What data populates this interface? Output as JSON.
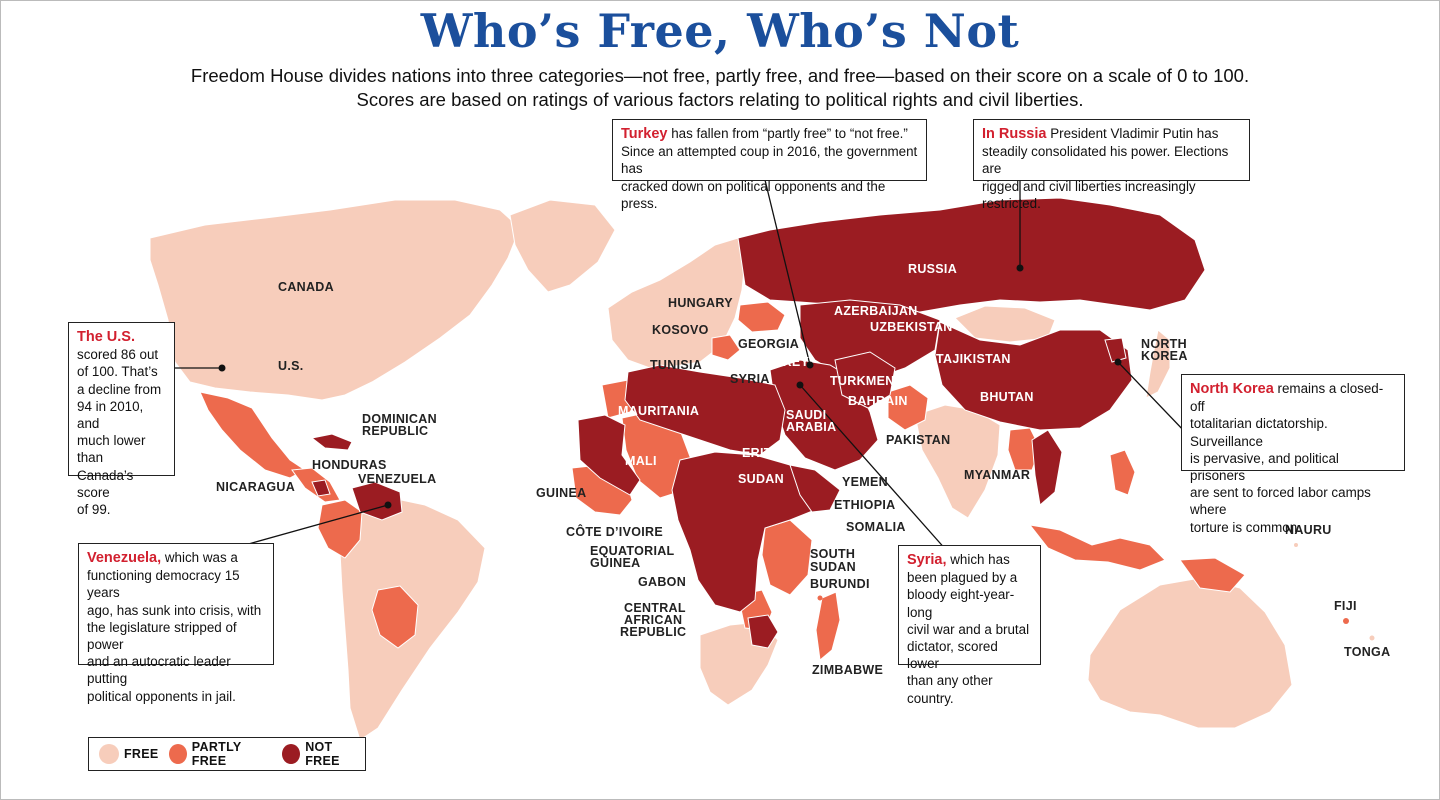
{
  "title": "Who’s Free, Who’s Not",
  "subtitle": [
    "Freedom House divides nations into three categories—not free, partly free, and free—based on their score on a scale of 0 to 100.",
    "Scores are based on ratings of various factors relating to political rights and civil liberties."
  ],
  "colors": {
    "free": "#f7cdbb",
    "partly_free": "#ed6a4d",
    "not_free": "#9b1c22",
    "title": "#1b4f9c",
    "highlight": "#d2202f"
  },
  "legend": [
    {
      "key": "free",
      "label": "FREE"
    },
    {
      "key": "partly_free",
      "label": "PARTLY FREE"
    },
    {
      "key": "not_free",
      "label": "NOT FREE"
    }
  ],
  "labels": {
    "canada": "CANADA",
    "us": "U.S.",
    "dominican": "DOMINICAN",
    "republic": "REPUBLIC",
    "honduras": "HONDURAS",
    "nicaragua": "NICARAGUA",
    "venezuela": "VENEZUELA",
    "hungary": "HUNGARY",
    "kosovo": "KOSOVO",
    "tunisia": "TUNISIA",
    "georgia": "GEORGIA",
    "turkey": "TURKEY",
    "syria": "SYRIA",
    "mauritania": "MAURITANIA",
    "mali": "MALI",
    "guinea": "GUINEA",
    "cote": "CÔTE D’IVOIRE",
    "eq1": "EQUATORIAL",
    "eq2": "GUINEA",
    "gabon": "GABON",
    "car1": "CENTRAL",
    "car2": "AFRICAN",
    "car3": "REPUBLIC",
    "eritrea": "ERITREA",
    "sudan": "SUDAN",
    "yemen": "YEMEN",
    "ethiopia": "ETHIOPIA",
    "somalia": "SOMALIA",
    "ss1": "SOUTH",
    "ss2": "SUDAN",
    "burundi": "BURUNDI",
    "zimbabwe": "ZIMBABWE",
    "saudi1": "SAUDI",
    "saudi2": "ARABIA",
    "bahrain": "BAHRAIN",
    "russia": "RUSSIA",
    "azerbaijan": "AZERBAIJAN",
    "uzbekistan": "UZBEKISTAN",
    "tajikistan": "TAJIKISTAN",
    "turkmenistan": "TURKMENISTAN",
    "pakistan": "PAKISTAN",
    "bhutan": "BHUTAN",
    "myanmar": "MYANMAR",
    "nk1": "NORTH",
    "nk2": "KOREA",
    "nauru": "NAURU",
    "fiji": "FIJI",
    "tonga": "TONGA"
  },
  "callouts": {
    "us": {
      "name": "The U.S.",
      "lines": [
        "scored 86 out",
        "of 100. That’s",
        "a decline from",
        "94 in 2010, and",
        "much lower than",
        "Canada’s score",
        "of 99."
      ]
    },
    "venezuela": {
      "name": "Venezuela,",
      "lines": [
        " which was a",
        "functioning democracy 15 years",
        "ago, has sunk into crisis, with",
        "the legislature stripped of power",
        "and an autocratic leader putting",
        "political opponents in jail."
      ]
    },
    "turkey": {
      "name": "Turkey",
      "lines": [
        " has fallen from “partly free” to “not free.”",
        "Since an attempted coup in 2016, the government has",
        "cracked down on political opponents and the press."
      ]
    },
    "russia": {
      "name": "In Russia",
      "lines": [
        " President Vladimir Putin has",
        "steadily consolidated his power. Elections are",
        "rigged and civil liberties increasingly restricted."
      ]
    },
    "northkorea": {
      "name": "North Korea",
      "lines": [
        " remains a closed-off",
        "totalitarian dictatorship. Surveillance",
        "is pervasive, and political prisoners",
        "are sent to forced labor camps where",
        "torture is common."
      ]
    },
    "syria": {
      "name": "Syria,",
      "lines": [
        " which has",
        "been plagued by a",
        "bloody eight-year-long",
        "civil war and a brutal",
        "dictator, scored lower",
        "than any other country."
      ]
    }
  }
}
